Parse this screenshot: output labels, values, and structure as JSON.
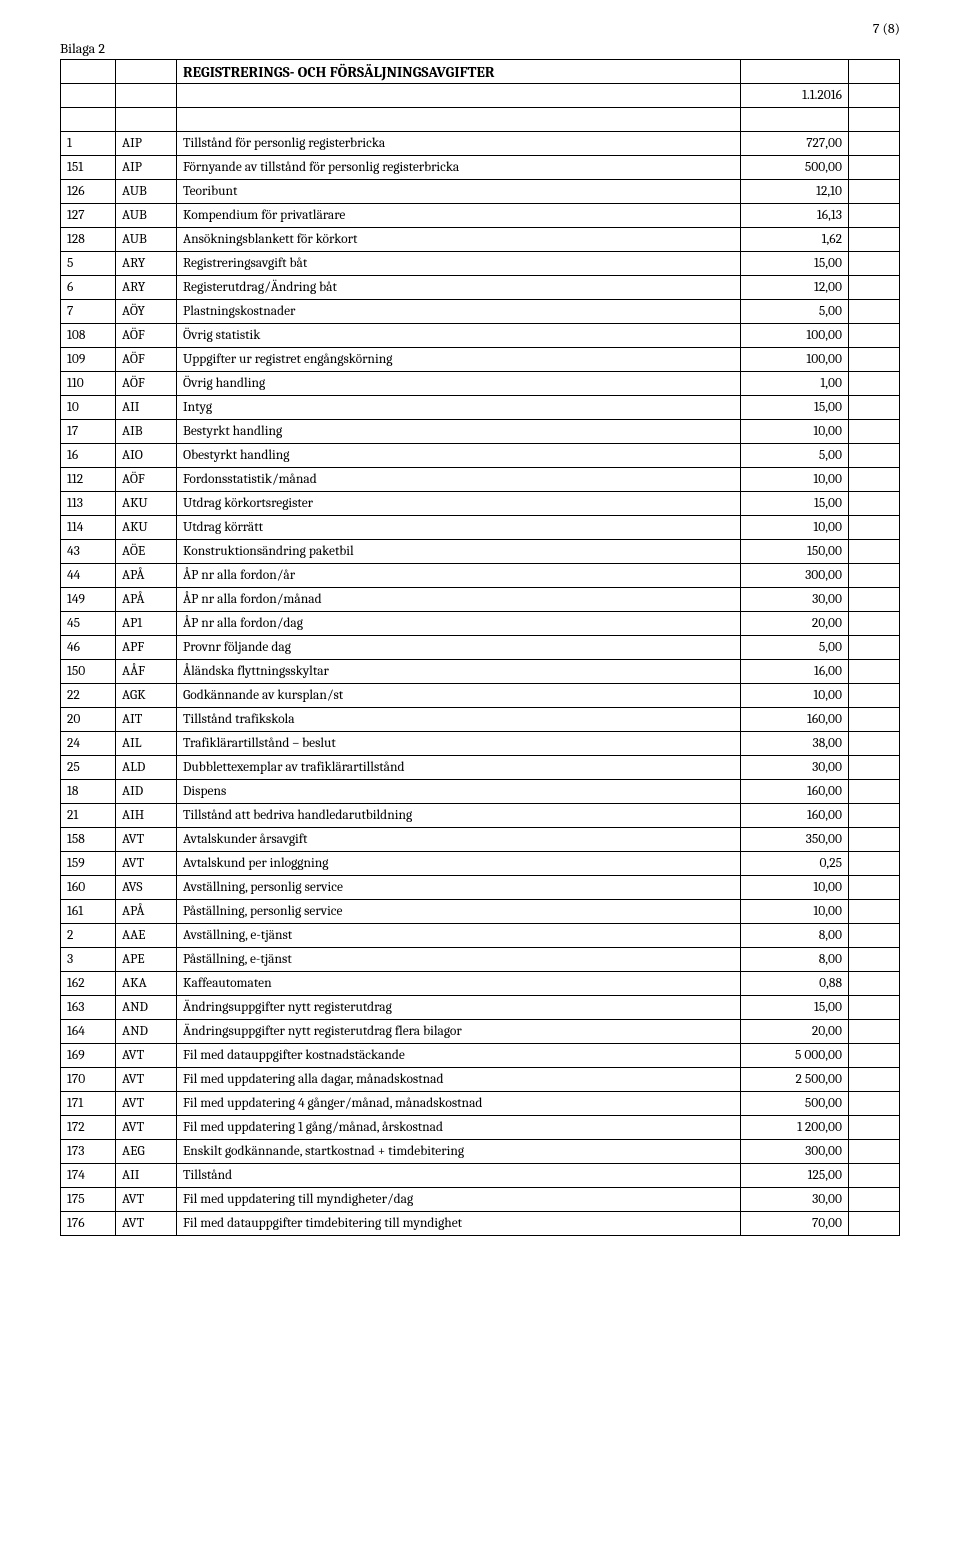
{
  "page_number": "7 (8)",
  "bilaga": "Bilaga 2",
  "title": "REGISTRERINGS- OCH FÖRSÄLJNINGSAVGIFTER",
  "date": "1.1.2016",
  "rows": [
    {
      "a": "1",
      "b": "AIP",
      "c": "Tillstånd för personlig registerbricka",
      "d": "727,00"
    },
    {
      "a": "151",
      "b": "AIP",
      "c": "Förnyande av tillstånd för personlig registerbricka",
      "d": "500,00"
    },
    {
      "a": "126",
      "b": "AUB",
      "c": "Teoribunt",
      "d": "12,10"
    },
    {
      "a": "127",
      "b": "AUB",
      "c": "Kompendium för privatlärare",
      "d": "16,13"
    },
    {
      "a": "128",
      "b": "AUB",
      "c": "Ansökningsblankett för körkort",
      "d": "1,62"
    },
    {
      "a": "5",
      "b": "ARY",
      "c": "Registreringsavgift båt",
      "d": "15,00"
    },
    {
      "a": "6",
      "b": "ARY",
      "c": "Registerutdrag/Ändring båt",
      "d": "12,00"
    },
    {
      "a": "7",
      "b": "AÖY",
      "c": "Plastningskostnader",
      "d": "5,00"
    },
    {
      "a": "108",
      "b": "AÖF",
      "c": "Övrig statistik",
      "d": "100,00"
    },
    {
      "a": "109",
      "b": "AÖF",
      "c": "Uppgifter ur registret engångskörning",
      "d": "100,00"
    },
    {
      "a": "110",
      "b": "AÖF",
      "c": "Övrig handling",
      "d": "1,00"
    },
    {
      "a": "10",
      "b": "AII",
      "c": "Intyg",
      "d": "15,00"
    },
    {
      "a": "17",
      "b": "AIB",
      "c": "Bestyrkt handling",
      "d": "10,00"
    },
    {
      "a": "16",
      "b": "AIO",
      "c": "Obestyrkt handling",
      "d": "5,00"
    },
    {
      "a": "112",
      "b": "AÖF",
      "c": "Fordonsstatistik/månad",
      "d": "10,00"
    },
    {
      "a": "113",
      "b": "AKU",
      "c": "Utdrag körkortsregister",
      "d": "15,00"
    },
    {
      "a": "114",
      "b": "AKU",
      "c": "Utdrag körrätt",
      "d": "10,00"
    },
    {
      "a": "43",
      "b": "AÖE",
      "c": "Konstruktionsändring paketbil",
      "d": "150,00"
    },
    {
      "a": "44",
      "b": "APÅ",
      "c": "ÅP nr alla fordon/år",
      "d": "300,00"
    },
    {
      "a": "149",
      "b": "APÅ",
      "c": "ÅP nr alla fordon/månad",
      "d": "30,00"
    },
    {
      "a": "45",
      "b": "AP1",
      "c": "ÅP nr alla fordon/dag",
      "d": "20,00"
    },
    {
      "a": "46",
      "b": "APF",
      "c": "Provnr följande dag",
      "d": "5,00"
    },
    {
      "a": "150",
      "b": "AÅF",
      "c": "Åländska flyttningsskyltar",
      "d": "16,00"
    },
    {
      "a": "22",
      "b": "AGK",
      "c": "Godkännande av kursplan/st",
      "d": "10,00"
    },
    {
      "a": "20",
      "b": "AIT",
      "c": "Tillstånd trafikskola",
      "d": "160,00"
    },
    {
      "a": "24",
      "b": "AIL",
      "c": "Trafiklärartillstånd – beslut",
      "d": "38,00"
    },
    {
      "a": "25",
      "b": "ALD",
      "c": "Dubblettexemplar av trafiklärartillstånd",
      "d": "30,00"
    },
    {
      "a": "18",
      "b": "AID",
      "c": "Dispens",
      "d": "160,00"
    },
    {
      "a": "21",
      "b": "AIH",
      "c": "Tillstånd att bedriva handledarutbildning",
      "d": "160,00"
    },
    {
      "a": "158",
      "b": "AVT",
      "c": "Avtalskunder årsavgift",
      "d": "350,00"
    },
    {
      "a": "159",
      "b": "AVT",
      "c": "Avtalskund per inloggning",
      "d": "0,25"
    },
    {
      "a": "160",
      "b": "AVS",
      "c": "Avställning, personlig service",
      "d": "10,00"
    },
    {
      "a": "161",
      "b": "APÅ",
      "c": "Påställning, personlig service",
      "d": "10,00"
    },
    {
      "a": "2",
      "b": "AAE",
      "c": "Avställning, e-tjänst",
      "d": "8,00"
    },
    {
      "a": "3",
      "b": "APE",
      "c": "Påställning, e-tjänst",
      "d": "8,00"
    },
    {
      "a": "162",
      "b": "AKA",
      "c": "Kaffeautomaten",
      "d": "0,88"
    },
    {
      "a": "163",
      "b": "AND",
      "c": "Ändringsuppgifter nytt registerutdrag",
      "d": "15,00"
    },
    {
      "a": "164",
      "b": "AND",
      "c": "Ändringsuppgifter nytt registerutdrag flera bilagor",
      "d": "20,00"
    },
    {
      "a": "169",
      "b": "AVT",
      "c": "Fil med datauppgifter kostnadstäckande",
      "d": "5 000,00"
    },
    {
      "a": "170",
      "b": "AVT",
      "c": "Fil med uppdatering alla dagar, månadskostnad",
      "d": "2 500,00"
    },
    {
      "a": "171",
      "b": "AVT",
      "c": "Fil med uppdatering 4 gånger/månad, månadskostnad",
      "d": "500,00"
    },
    {
      "a": "172",
      "b": "AVT",
      "c": "Fil med uppdatering 1 gång/månad, årskostnad",
      "d": "1 200,00"
    },
    {
      "a": "173",
      "b": "AEG",
      "c": "Enskilt godkännande, startkostnad + timdebitering",
      "d": "300,00"
    },
    {
      "a": "174",
      "b": "AII",
      "c": "Tillstånd",
      "d": "125,00"
    },
    {
      "a": "175",
      "b": "AVT",
      "c": "Fil med uppdatering till myndigheter/dag",
      "d": "30,00"
    },
    {
      "a": "176",
      "b": "AVT",
      "c": "Fil med datauppgifter timdebitering till myndighet",
      "d": "70,00"
    }
  ]
}
